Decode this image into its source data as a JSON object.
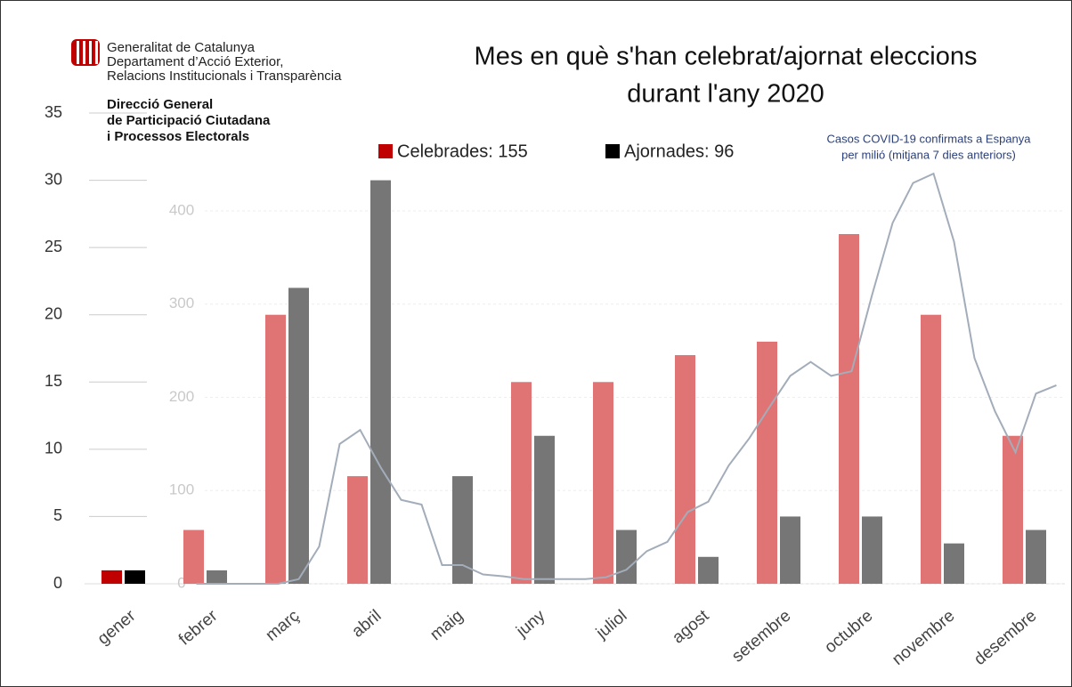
{
  "chart_data": [
    {
      "type": "bar",
      "title": [
        "Mes en què s'han celebrat/ajornat eleccions",
        "durant l'any 2020"
      ],
      "source": [
        "Generalitat de Catalunya",
        "Departament d’Acció Exterior,",
        "Relacions Institucionals i Transparència"
      ],
      "source_bold": [
        "Direcció General",
        "de Participació Ciutadana",
        "i Processos Electorals"
      ],
      "categories": [
        "gener",
        "febrer",
        "març",
        "abril",
        "maig",
        "juny",
        "juliol",
        "agost",
        "setembre",
        "octubre",
        "novembre",
        "desembre"
      ],
      "series": [
        {
          "name": "Celebrades: 155",
          "color": "#e07474",
          "highlight_color": "#c00000",
          "values": [
            1,
            4,
            20,
            8,
            0,
            15,
            15,
            17,
            18,
            26,
            20,
            11
          ]
        },
        {
          "name": "Ajornades: 96",
          "color": "#767676",
          "highlight_color": "#000000",
          "values": [
            1,
            1,
            22,
            30,
            8,
            11,
            4,
            2,
            5,
            5,
            3,
            4
          ]
        }
      ],
      "ylim": [
        0,
        35
      ],
      "yticks": [
        0,
        5,
        10,
        15,
        20,
        25,
        30,
        35
      ],
      "grid": true
    },
    {
      "type": "line",
      "label": [
        "Casos COVID-19 confirmats a Espanya",
        "per milió (mitjana 7 dies anteriors)"
      ],
      "color": "#a3adba",
      "values": [
        null,
        null,
        null,
        null,
        null,
        0,
        0,
        0,
        0,
        0,
        5,
        40,
        150,
        165,
        125,
        90,
        85,
        20,
        20,
        10,
        8,
        5,
        5,
        5,
        5,
        7,
        15,
        35,
        45,
        77,
        88,
        127,
        156,
        190,
        223,
        238,
        223,
        228,
        310,
        387,
        430,
        440,
        367,
        242,
        185,
        141,
        204,
        213
      ],
      "y2lim": [
        0,
        505
      ],
      "y2ticks": [
        0,
        100,
        200,
        300,
        400
      ],
      "axis": "y2"
    }
  ]
}
